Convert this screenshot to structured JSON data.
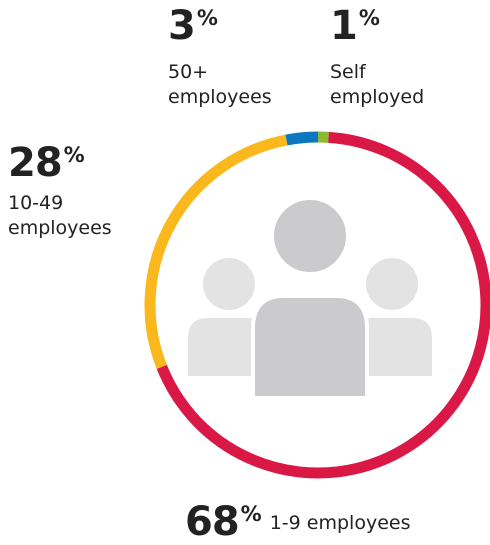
{
  "chart_data": {
    "type": "donut",
    "title": "",
    "unit": "%",
    "slices": [
      {
        "label_lines": [
          "1-9 employees"
        ],
        "value": 68,
        "color": "#DA1846"
      },
      {
        "label_lines": [
          "10-49",
          "employees"
        ],
        "value": 28,
        "color": "#FBB81D"
      },
      {
        "label_lines": [
          "50+",
          "employees"
        ],
        "value": 3,
        "color": "#0A77C0"
      },
      {
        "label_lines": [
          "Self",
          "employed"
        ],
        "value": 1,
        "color": "#8DB832"
      }
    ]
  },
  "center_icon": "people-group-icon"
}
